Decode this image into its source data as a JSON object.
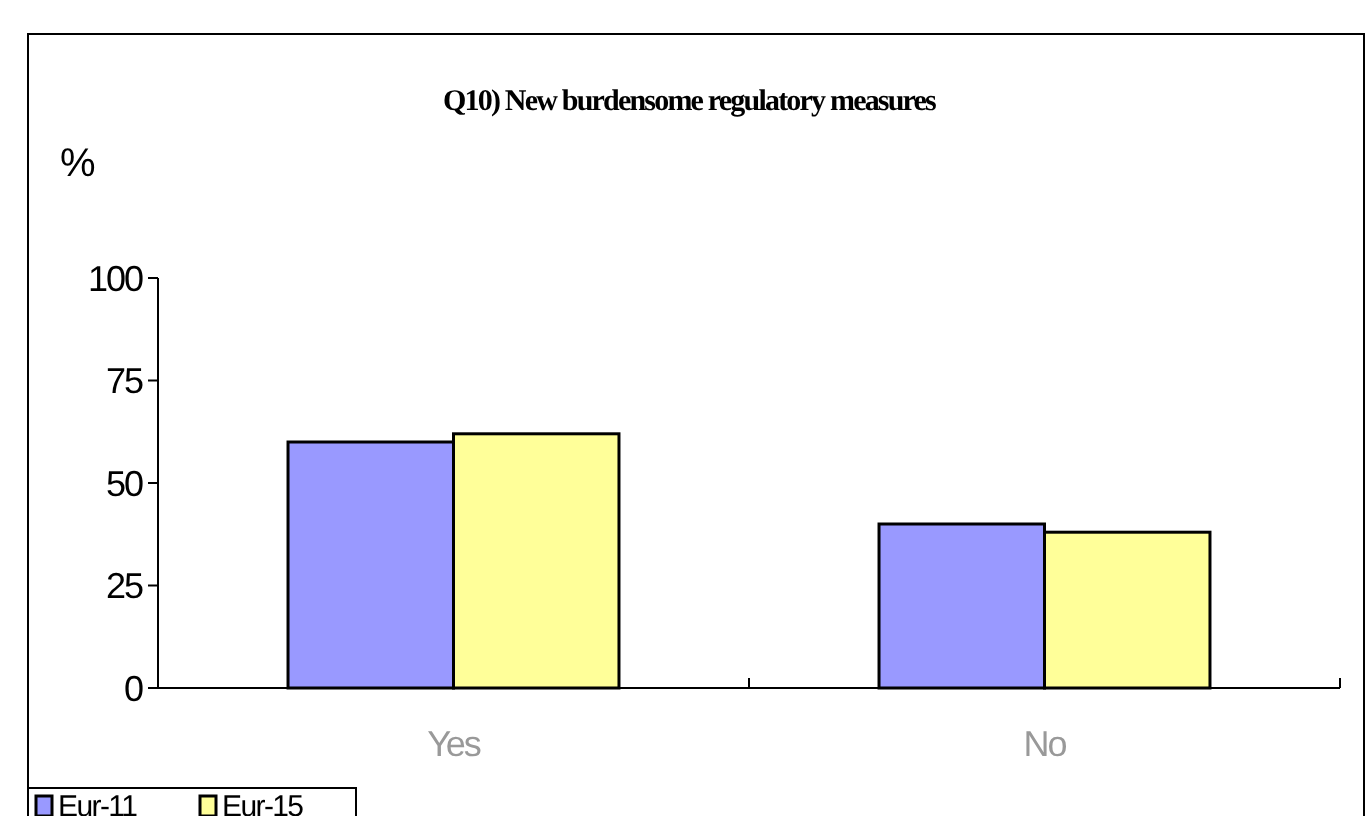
{
  "chart_data": {
    "type": "bar",
    "title": "Q10) New burdensome regulatory measures",
    "ylabel": "%",
    "categories": [
      "Yes",
      "No"
    ],
    "series": [
      {
        "name": "Eur-11",
        "color": "#9999ff",
        "values": [
          60,
          40
        ]
      },
      {
        "name": "Eur-15",
        "color": "#ffff99",
        "values": [
          62,
          38
        ]
      }
    ],
    "ylim": [
      0,
      100
    ],
    "yticks": [
      0,
      25,
      50,
      75,
      100
    ],
    "grid": false,
    "legend": "bottom left"
  }
}
